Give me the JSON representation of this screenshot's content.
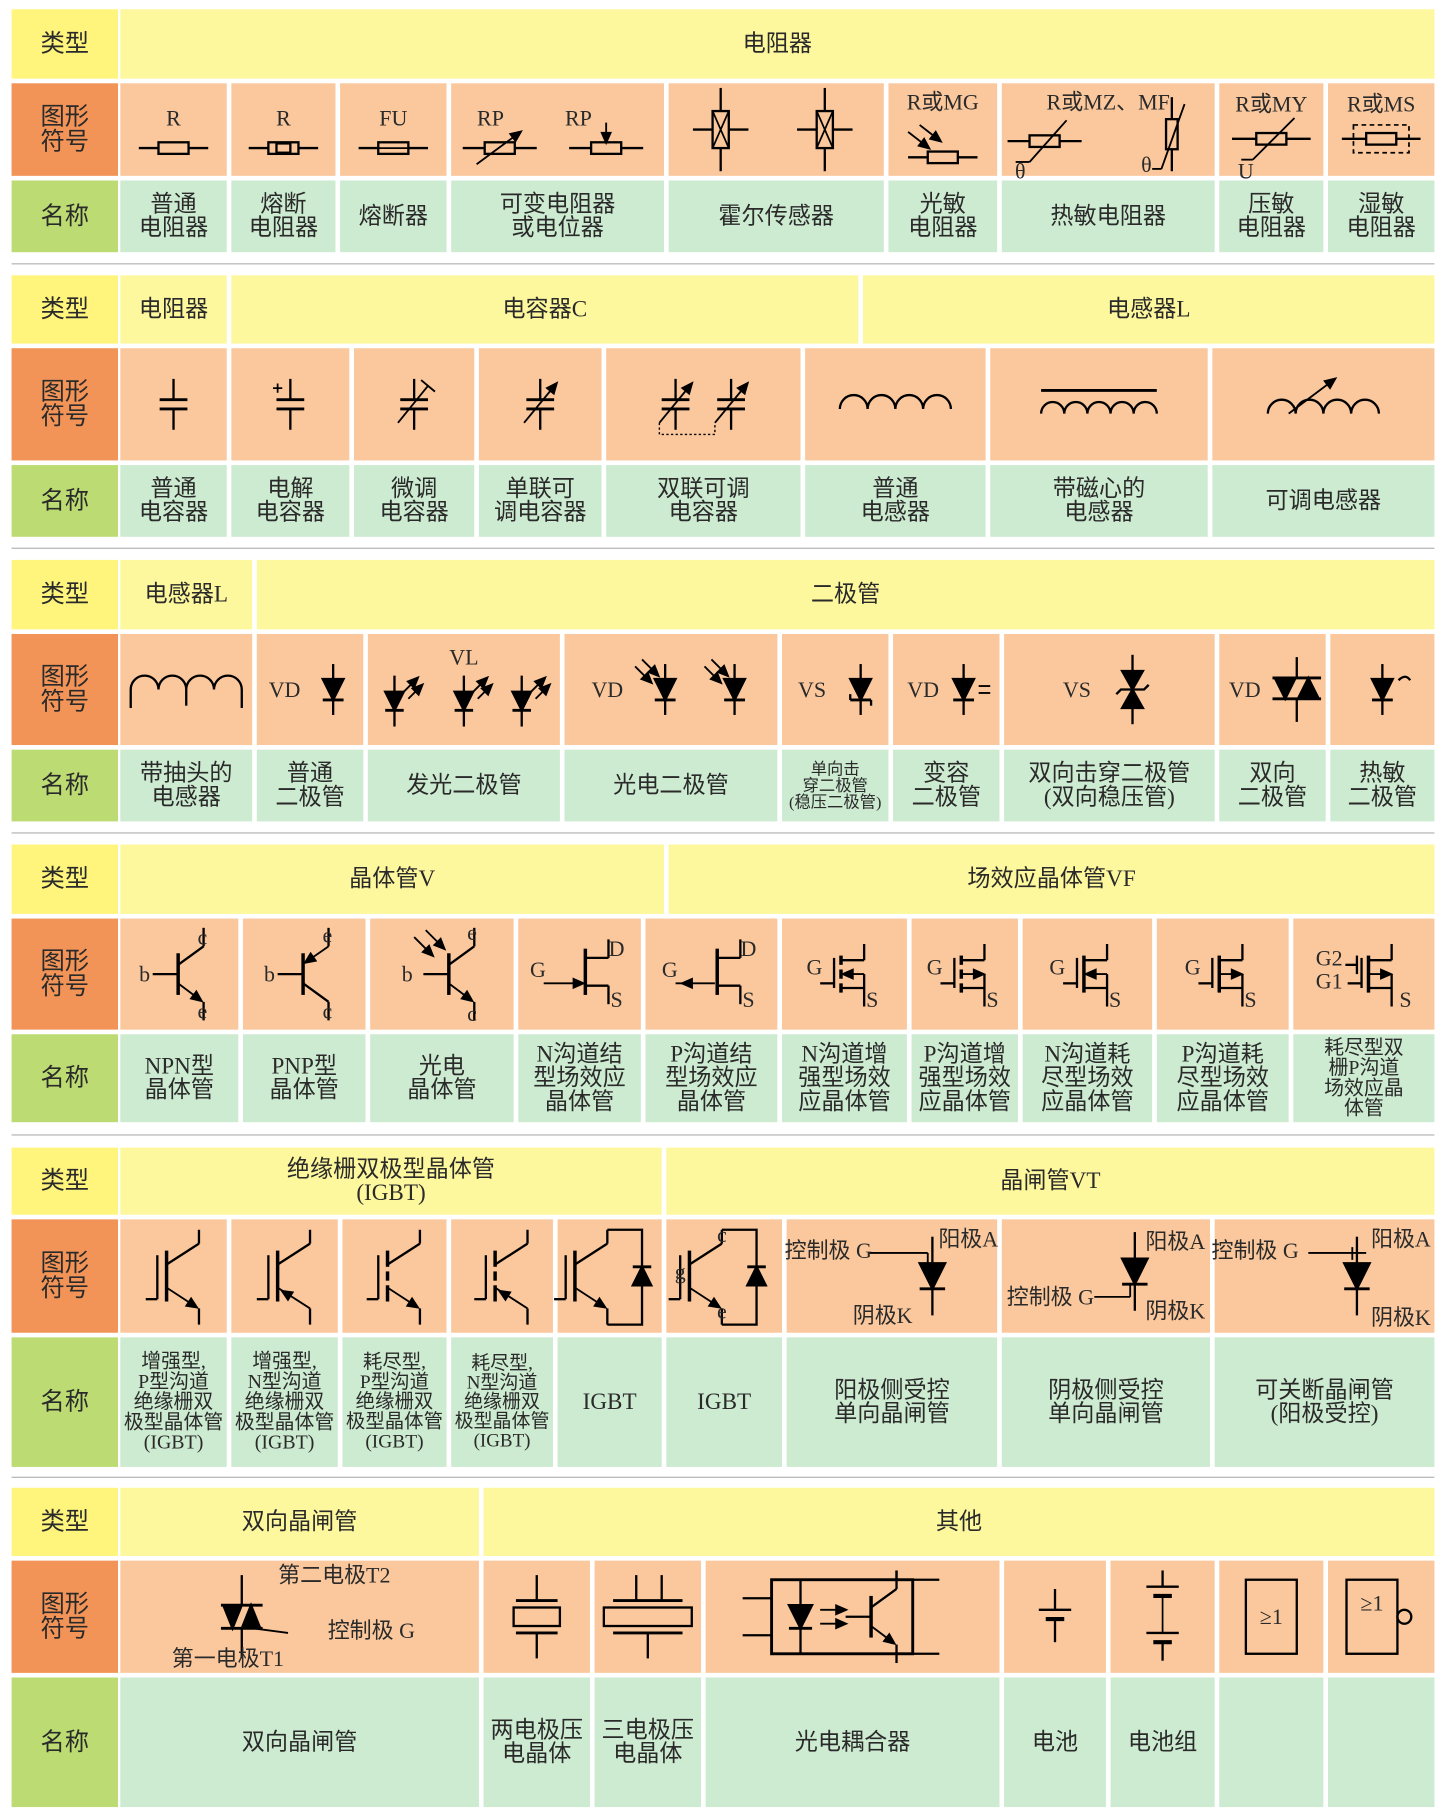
{
  "row_headers": [
    [
      "类型"
    ],
    [
      "图形",
      "符号"
    ],
    [
      "名称"
    ]
  ],
  "sections": [
    {
      "types": [
        [
          "电阻器"
        ]
      ],
      "items": [
        {
          "symbol_labels": [
            "R"
          ],
          "name": [
            "普通",
            "电阻器"
          ]
        },
        {
          "symbol_labels": [
            "R"
          ],
          "name": [
            "熔断",
            "电阻器"
          ]
        },
        {
          "symbol_labels": [
            "FU"
          ],
          "name": [
            "熔断器"
          ]
        },
        {
          "symbol_labels": [
            "RP",
            "RP"
          ],
          "name": [
            "可变电阻器",
            "或电位器"
          ]
        },
        {
          "name": [
            "霍尔传感器"
          ]
        },
        {
          "symbol_labels": [
            "R或MG"
          ],
          "name": [
            "光敏",
            "电阻器"
          ]
        },
        {
          "symbol_labels": [
            "R或MZ、MF",
            "θ",
            "θ"
          ],
          "name": [
            "热敏电阻器"
          ]
        },
        {
          "symbol_labels": [
            "R或MY",
            "U"
          ],
          "name": [
            "压敏",
            "电阻器"
          ]
        },
        {
          "symbol_labels": [
            "R或MS"
          ],
          "name": [
            "湿敏",
            "电阻器"
          ]
        }
      ]
    },
    {
      "types": [
        [
          "电阻器"
        ],
        [
          "电容器C"
        ],
        [
          "电感器L"
        ]
      ],
      "items": [
        {
          "name": [
            "普通",
            "电容器"
          ]
        },
        {
          "name": [
            "电解",
            "电容器"
          ]
        },
        {
          "name": [
            "微调",
            "电容器"
          ]
        },
        {
          "name": [
            "单联可",
            "调电容器"
          ]
        },
        {
          "name": [
            "双联可调",
            "电容器"
          ]
        },
        {
          "name": [
            "普通",
            "电感器"
          ]
        },
        {
          "name": [
            "带磁心的",
            "电感器"
          ]
        },
        {
          "name": [
            "可调电感器"
          ]
        }
      ]
    },
    {
      "types": [
        [
          "电感器L"
        ],
        [
          "二极管"
        ]
      ],
      "items": [
        {
          "name": [
            "带抽头的",
            "电感器"
          ]
        },
        {
          "symbol_labels": [
            "VD"
          ],
          "name": [
            "普通",
            "二极管"
          ]
        },
        {
          "symbol_labels": [
            "VL"
          ],
          "name": [
            "发光二极管"
          ]
        },
        {
          "symbol_labels": [
            "VD"
          ],
          "name": [
            "光电二极管"
          ]
        },
        {
          "symbol_labels": [
            "VS"
          ],
          "name": [
            "单向击",
            "穿二极管",
            "(稳压二极管)"
          ]
        },
        {
          "symbol_labels": [
            "VD"
          ],
          "name": [
            "变容",
            "二极管"
          ]
        },
        {
          "symbol_labels": [
            "VS"
          ],
          "name": [
            "双向击穿二极管",
            "(双向稳压管)"
          ]
        },
        {
          "symbol_labels": [
            "VD"
          ],
          "name": [
            "双向",
            "二极管"
          ]
        },
        {
          "name": [
            "热敏",
            "二极管"
          ]
        }
      ]
    },
    {
      "types": [
        [
          "晶体管V"
        ],
        [
          "场效应晶体管VF"
        ]
      ],
      "items": [
        {
          "symbol_labels": [
            "b",
            "c",
            "e"
          ],
          "name": [
            "NPN型",
            "晶体管"
          ]
        },
        {
          "symbol_labels": [
            "b",
            "e",
            "c"
          ],
          "name": [
            "PNP型",
            "晶体管"
          ]
        },
        {
          "symbol_labels": [
            "b",
            "e",
            "c"
          ],
          "name": [
            "光电",
            "晶体管"
          ]
        },
        {
          "symbol_labels": [
            "G",
            "D",
            "S"
          ],
          "name": [
            "N沟道结",
            "型场效应",
            "晶体管"
          ]
        },
        {
          "symbol_labels": [
            "G",
            "D",
            "S"
          ],
          "name": [
            "P沟道结",
            "型场效应",
            "晶体管"
          ]
        },
        {
          "symbol_labels": [
            "G",
            "S"
          ],
          "name": [
            "N沟道增",
            "强型场效",
            "应晶体管"
          ]
        },
        {
          "symbol_labels": [
            "G",
            "S"
          ],
          "name": [
            "P沟道增",
            "强型场效",
            "应晶体管"
          ]
        },
        {
          "symbol_labels": [
            "G",
            "S"
          ],
          "name": [
            "N沟道耗",
            "尽型场效",
            "应晶体管"
          ]
        },
        {
          "symbol_labels": [
            "G",
            "S"
          ],
          "name": [
            "P沟道耗",
            "尽型场效",
            "应晶体管"
          ]
        },
        {
          "symbol_labels": [
            "G2",
            "G1",
            "S"
          ],
          "name": [
            "耗尽型双",
            "栅P沟道",
            "场效应晶",
            "体管"
          ]
        }
      ]
    },
    {
      "types": [
        [
          "绝缘栅双极型晶体管",
          "(IGBT)"
        ],
        [
          "晶闸管VT"
        ]
      ],
      "items": [
        {
          "name": [
            "增强型,",
            "P型沟道",
            "绝缘栅双",
            "极型晶体管",
            "(IGBT)"
          ]
        },
        {
          "name": [
            "增强型,",
            "N型沟道",
            "绝缘栅双",
            "极型晶体管",
            "(IGBT)"
          ]
        },
        {
          "name": [
            "耗尽型,",
            "P型沟道",
            "绝缘栅双",
            "极型晶体管",
            "(IGBT)"
          ]
        },
        {
          "name": [
            "耗尽型,",
            "N型沟道",
            "绝缘栅双",
            "极型晶体管",
            "(IGBT)"
          ]
        },
        {
          "name": [
            "IGBT"
          ]
        },
        {
          "symbol_labels": [
            "c",
            "g",
            "e"
          ],
          "name": [
            "IGBT"
          ]
        },
        {
          "symbol_labels": [
            "控制极 G",
            "阳极A",
            "阴极K"
          ],
          "name": [
            "阳极侧受控",
            "单向晶闸管"
          ]
        },
        {
          "symbol_labels": [
            "阳极A",
            "控制极 G",
            "阴极K"
          ],
          "name": [
            "阴极侧受控",
            "单向晶闸管"
          ]
        },
        {
          "symbol_labels": [
            "控制极 G",
            "阳极A",
            "阴极K"
          ],
          "name": [
            "可关断晶闸管",
            "(阳极受控)"
          ]
        }
      ]
    },
    {
      "types": [
        [
          "双向晶闸管"
        ],
        [
          "其他"
        ]
      ],
      "items": [
        {
          "symbol_labels": [
            "第二电极T2",
            "控制极 G",
            "第一电极T1"
          ],
          "name": [
            "双向晶闸管"
          ]
        },
        {
          "name": [
            "两电极压",
            "电晶体"
          ]
        },
        {
          "name": [
            "三电极压",
            "电晶体"
          ]
        },
        {
          "name": [
            "光电耦合器"
          ]
        },
        {
          "name": [
            "电池"
          ]
        },
        {
          "name": [
            "电池组"
          ]
        },
        {
          "symbol_labels": [
            "≥1"
          ]
        },
        {
          "symbol_labels": [
            "≥1"
          ]
        }
      ]
    }
  ]
}
